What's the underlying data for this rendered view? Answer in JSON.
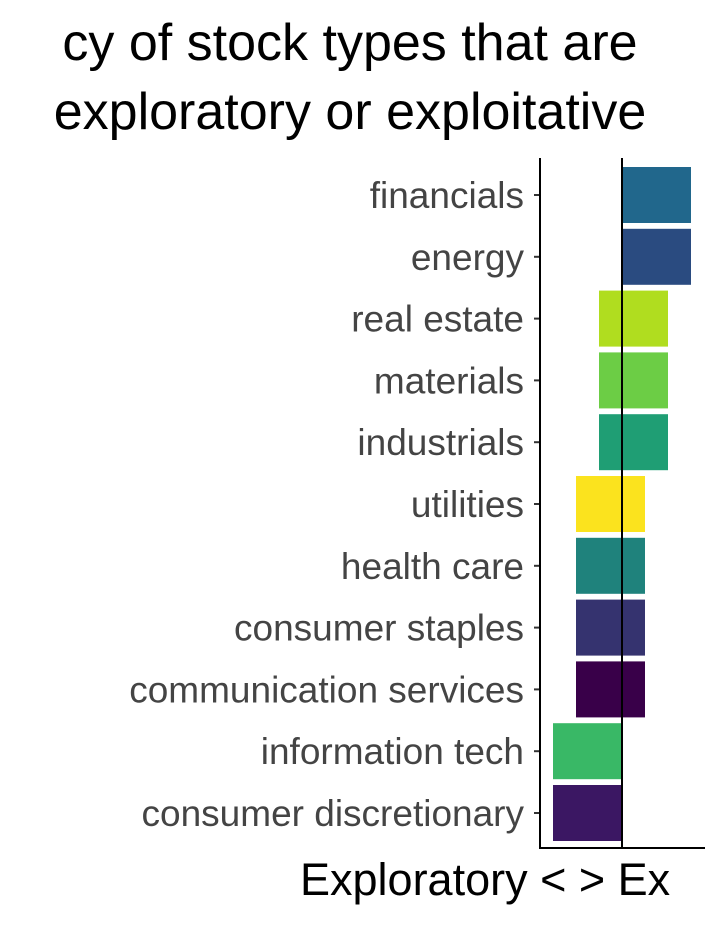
{
  "chart_data": {
    "type": "bar",
    "orientation": "horizontal",
    "title_lines": [
      "cy of stock types that are",
      "exploratory or exploitative"
    ],
    "xlabel": "Exploratory < > Ex",
    "ylabel": "",
    "xlim": [
      -3,
      3
    ],
    "reference_line": 0,
    "grid": false,
    "legend": "none",
    "categories": [
      "financials",
      "energy",
      "real estate",
      "materials",
      "industrials",
      "utilities",
      "health care",
      "consumer staples",
      "communication services",
      "information tech",
      "consumer discretionary"
    ],
    "bars": [
      {
        "start": 0,
        "end": 3,
        "color": "#21678c"
      },
      {
        "start": 0,
        "end": 3,
        "color": "#2a4b80"
      },
      {
        "start": -1,
        "end": 2,
        "color": "#b0dd1f"
      },
      {
        "start": -1,
        "end": 2,
        "color": "#6ccd45"
      },
      {
        "start": -1,
        "end": 2,
        "color": "#1f9e74"
      },
      {
        "start": -2,
        "end": 1,
        "color": "#fbe31e"
      },
      {
        "start": -2,
        "end": 1,
        "color": "#1f827c"
      },
      {
        "start": -2,
        "end": 1,
        "color": "#35336f"
      },
      {
        "start": -2,
        "end": 1,
        "color": "#390049"
      },
      {
        "start": -3,
        "end": 0,
        "color": "#39b866"
      },
      {
        "start": -3,
        "end": 0,
        "color": "#3b1763"
      }
    ]
  }
}
